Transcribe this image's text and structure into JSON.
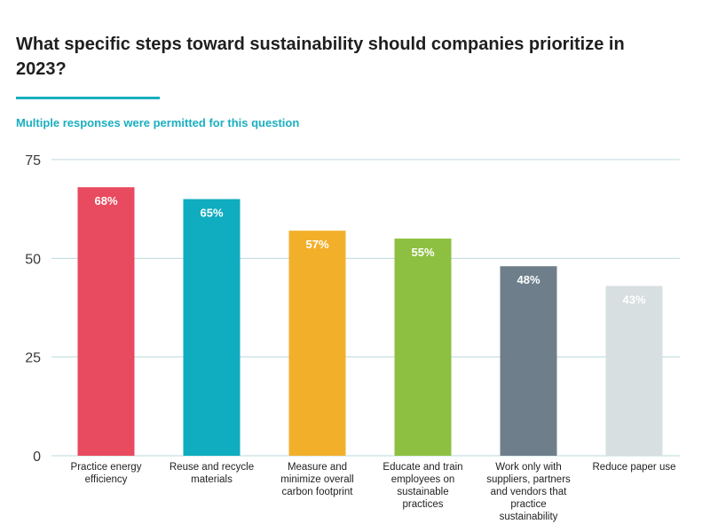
{
  "header": {
    "title": "What specific steps toward sustainability should companies prioritize in 2023?",
    "subtitle": "Multiple responses were permitted for this question"
  },
  "colors": {
    "accent": "#1aafbf",
    "grid": "#bcd9de",
    "label_light": "#ffffff",
    "label_on_pale": "#ffffff"
  },
  "chart_data": {
    "type": "bar",
    "categories": [
      "Practice energy\nefficiency",
      "Reuse and recycle\nmaterials",
      "Measure and\nminimize overall\ncarbon footprint",
      "Educate and train\nemployees on\nsustainable\npractices",
      "Work only with\nsuppliers, partners\nand vendors that\npractice\nsustainability",
      "Reduce paper use"
    ],
    "values": [
      68,
      65,
      57,
      55,
      48,
      43
    ],
    "data_labels": [
      "68%",
      "65%",
      "57%",
      "55%",
      "48%",
      "43%"
    ],
    "bar_colors": [
      "#e84a5f",
      "#0fadbf",
      "#f2b02a",
      "#8dc040",
      "#6e7f8b",
      "#d8dfe0"
    ],
    "y_ticks": [
      0,
      25,
      50,
      75
    ],
    "ylim": [
      0,
      75
    ],
    "grid": true,
    "legend": "none"
  }
}
